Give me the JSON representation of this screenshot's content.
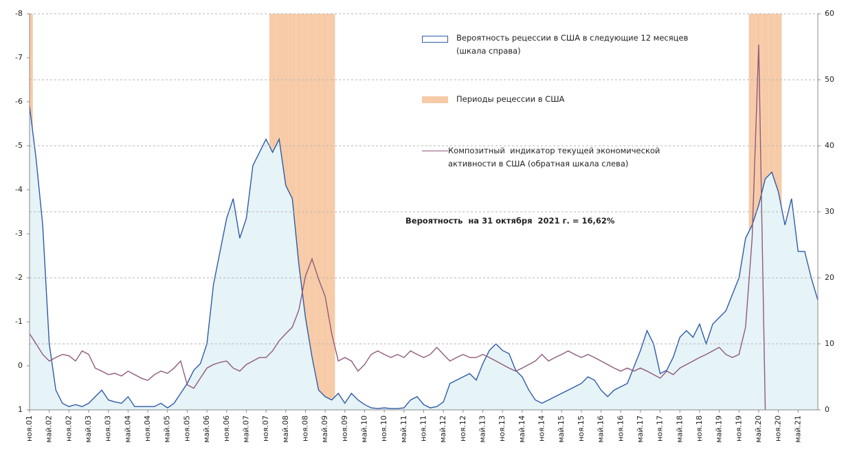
{
  "chart_data": {
    "type": "line",
    "annotation": "Вероятность  на 31 октября  2021 г. = 16,62%",
    "categories": [
      "ноя.01",
      null,
      null,
      "май.02",
      null,
      null,
      "ноя.02",
      null,
      null,
      "май.03",
      null,
      null,
      "ноя.03",
      null,
      null,
      "май.04",
      null,
      null,
      "ноя.04",
      null,
      null,
      "май.05",
      null,
      null,
      "ноя.05",
      null,
      null,
      "май.06",
      null,
      null,
      "ноя.06",
      null,
      null,
      "май.07",
      null,
      null,
      "ноя.07",
      null,
      null,
      "май.08",
      null,
      null,
      "ноя.08",
      null,
      null,
      "май.09",
      null,
      null,
      "ноя.09",
      null,
      null,
      "май.10",
      null,
      null,
      "ноя.10",
      null,
      null,
      "май.11",
      null,
      null,
      "ноя.11",
      null,
      null,
      "май.12",
      null,
      null,
      "ноя.12",
      null,
      null,
      "май.13",
      null,
      null,
      "ноя.13",
      null,
      null,
      "май.14",
      null,
      null,
      "ноя.14",
      null,
      null,
      "май.15",
      null,
      null,
      "ноя.15",
      null,
      null,
      "май.16",
      null,
      null,
      "ноя.16",
      null,
      null,
      "май.17",
      null,
      null,
      "ноя.17",
      null,
      null,
      "май.18",
      null,
      null,
      "ноя.18",
      null,
      null,
      "май.19",
      null,
      null,
      "ноя.19",
      null,
      null,
      "май.20",
      null,
      null,
      "ноя.20",
      null,
      null,
      "май.21",
      null,
      null,
      null
    ],
    "ylim": [
      1,
      -8
    ],
    "yticks": [
      -8,
      -7,
      -6,
      -5,
      -4,
      -3,
      -2,
      -1,
      0,
      1
    ],
    "y2lim": [
      0,
      60
    ],
    "y2ticks": [
      0,
      10,
      20,
      30,
      40,
      50,
      60
    ],
    "grid": true,
    "series": [
      {
        "name": "Периоды  рецессии в США",
        "type": "bar",
        "axis": "y2",
        "color": "#f7cba8",
        "values": [
          60,
          0,
          0,
          0,
          0,
          0,
          0,
          0,
          0,
          0,
          0,
          0,
          0,
          0,
          0,
          0,
          0,
          0,
          0,
          0,
          0,
          0,
          0,
          0,
          0,
          0,
          0,
          0,
          0,
          0,
          0,
          0,
          0,
          0,
          0,
          0,
          0,
          60,
          60,
          60,
          60,
          60,
          60,
          60,
          60,
          60,
          60,
          0,
          0,
          0,
          0,
          0,
          0,
          0,
          0,
          0,
          0,
          0,
          0,
          0,
          0,
          0,
          0,
          0,
          0,
          0,
          0,
          0,
          0,
          0,
          0,
          0,
          0,
          0,
          0,
          0,
          0,
          0,
          0,
          0,
          0,
          0,
          0,
          0,
          0,
          0,
          0,
          0,
          0,
          0,
          0,
          0,
          0,
          0,
          0,
          0,
          0,
          0,
          0,
          0,
          0,
          0,
          0,
          0,
          0,
          0,
          0,
          0,
          0,
          0,
          60,
          60,
          60,
          60,
          60,
          0,
          0,
          0,
          0,
          0,
          0
        ]
      },
      {
        "name": "Вероятность рецессии в США в следующие 12 месяцев (шкала справа)",
        "type": "area",
        "axis": "y2",
        "color": "#2e5aa8",
        "fill": "#e6f3f7",
        "values": [
          46,
          38,
          28,
          10,
          3,
          1,
          0.5,
          0.8,
          0.5,
          1,
          2,
          3,
          1.5,
          1.2,
          1,
          2,
          0.5,
          0.5,
          0.5,
          0.5,
          1,
          0.3,
          1,
          2.5,
          4,
          6,
          7,
          10,
          19,
          24,
          29,
          32,
          26,
          29,
          37,
          39,
          41,
          39,
          41,
          34,
          32,
          22,
          14,
          8,
          3,
          2,
          1.5,
          2.5,
          1,
          2.5,
          1.5,
          0.8,
          0.3,
          0.2,
          0.3,
          0.2,
          0.2,
          0.3,
          1.5,
          2,
          0.8,
          0.3,
          0.5,
          1.2,
          4,
          4.5,
          5,
          5.5,
          4.5,
          7,
          9,
          10,
          9,
          8.5,
          6,
          5,
          3,
          1.5,
          1,
          1.5,
          2,
          2.5,
          3,
          3.5,
          4,
          5,
          4.5,
          3,
          2,
          3,
          3.5,
          4,
          6.5,
          9,
          12,
          10,
          5.5,
          6,
          8,
          11,
          12,
          11,
          13,
          10,
          13,
          14,
          15,
          17.5,
          20,
          26,
          28,
          31,
          35,
          36,
          33,
          28,
          32,
          24,
          24,
          20,
          16.62
        ]
      },
      {
        "name": "Композитный  индикатор текущей экономической активности в США (обратная шкала слева)",
        "type": "line",
        "axis": "y",
        "color": "#8e5a7a",
        "values": [
          -0.73,
          -0.5,
          -0.26,
          -0.11,
          -0.19,
          -0.26,
          -0.23,
          -0.11,
          -0.34,
          -0.26,
          0.05,
          0.12,
          0.2,
          0.17,
          0.23,
          0.12,
          0.2,
          0.28,
          0.33,
          0.2,
          0.12,
          0.17,
          0.05,
          -0.11,
          0.43,
          0.51,
          0.28,
          0.05,
          -0.03,
          -0.08,
          -0.11,
          0.05,
          0.12,
          -0.03,
          -0.11,
          -0.19,
          -0.19,
          -0.34,
          -0.57,
          -0.73,
          -0.88,
          -1.27,
          -2.04,
          -2.43,
          -1.97,
          -1.58,
          -0.73,
          -0.11,
          -0.19,
          -0.11,
          0.12,
          -0.03,
          -0.26,
          -0.34,
          -0.26,
          -0.19,
          -0.26,
          -0.19,
          -0.34,
          -0.26,
          -0.19,
          -0.26,
          -0.42,
          -0.26,
          -0.11,
          -0.19,
          -0.26,
          -0.19,
          -0.19,
          -0.26,
          -0.19,
          -0.11,
          -0.03,
          0.05,
          0.12,
          0.05,
          -0.03,
          -0.11,
          -0.26,
          -0.11,
          -0.19,
          -0.26,
          -0.34,
          -0.26,
          -0.19,
          -0.26,
          -0.19,
          -0.11,
          -0.03,
          0.05,
          0.12,
          0.05,
          0.12,
          0.05,
          0.12,
          0.2,
          0.28,
          0.12,
          0.2,
          0.05,
          -0.03,
          -0.11,
          -0.19,
          -0.26,
          -0.34,
          -0.42,
          -0.26,
          -0.19,
          -0.26,
          -0.88,
          -2.9,
          -7.3,
          1,
          null,
          null,
          null,
          null,
          null,
          null,
          null,
          null
        ]
      }
    ]
  }
}
